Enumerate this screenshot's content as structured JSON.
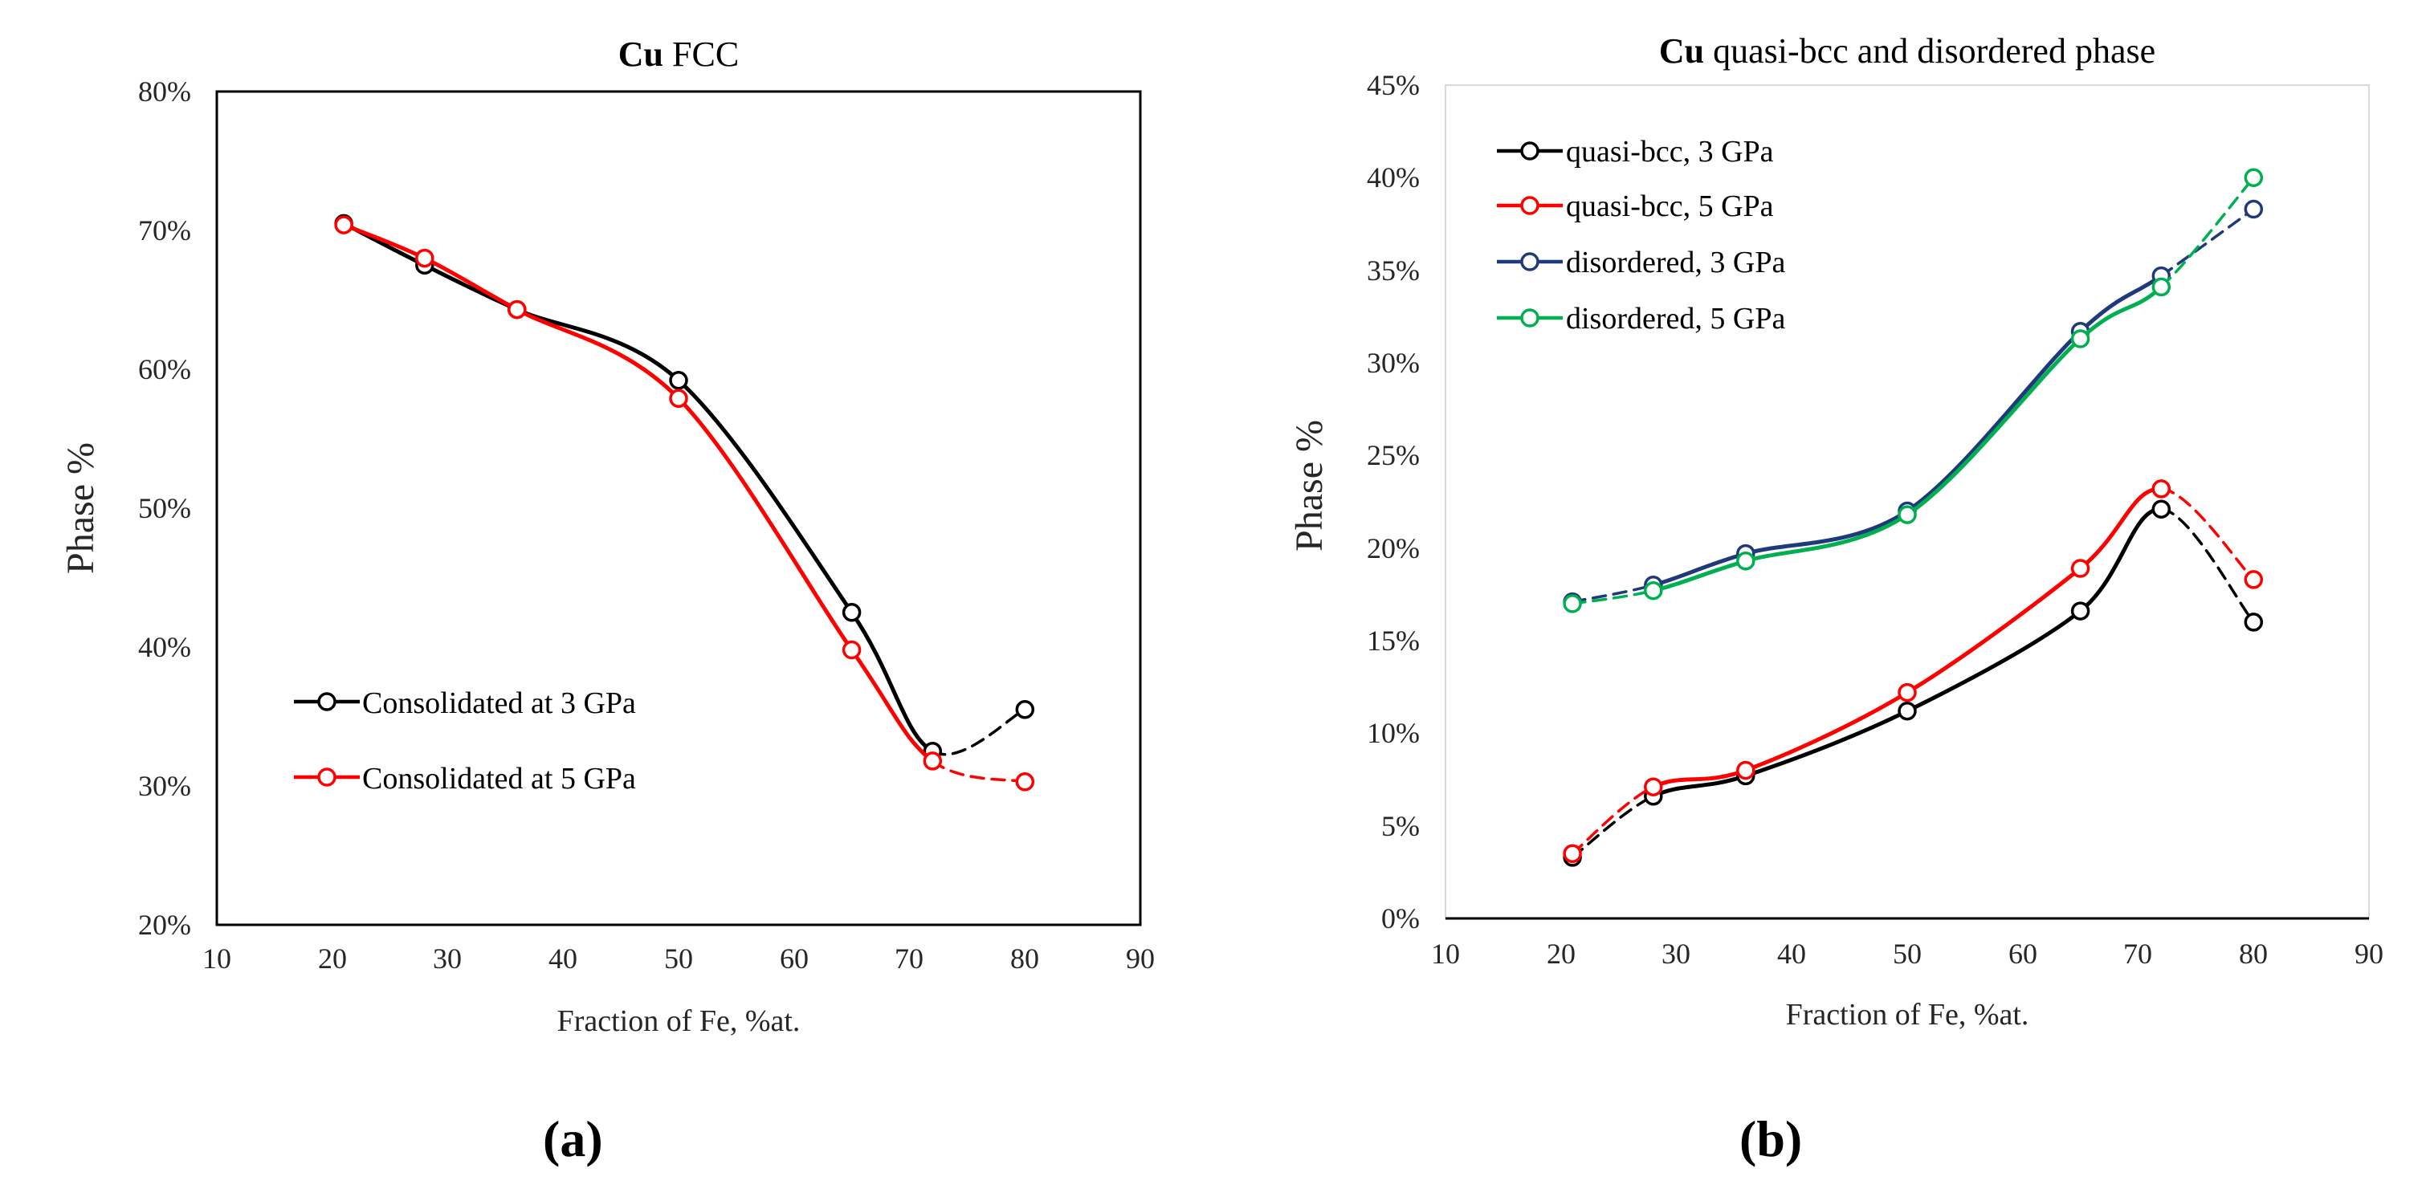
{
  "chart_data": [
    {
      "type": "line",
      "panel_label": "(a)",
      "title_bold": "Cu",
      "title_rest": " FCC",
      "xlabel": "Fraction of Fe, %at.",
      "ylabel": "Phase %",
      "xlim": [
        10,
        90
      ],
      "ylim": [
        20,
        80
      ],
      "x_ticks": [
        "10",
        "20",
        "30",
        "40",
        "50",
        "60",
        "70",
        "80",
        "90"
      ],
      "y_ticks": [
        "20%",
        "30%",
        "40%",
        "50%",
        "60%",
        "70%",
        "80%"
      ],
      "legend_position": "lower-left",
      "series": [
        {
          "name": "Consolidated at 3 GPa",
          "color": "#000000",
          "x": [
            21,
            28,
            36,
            50,
            65,
            72,
            80
          ],
          "values": [
            70.5,
            67.5,
            64.3,
            59.2,
            42.5,
            32.5,
            35.5
          ],
          "dashed_last_segment": true
        },
        {
          "name": "Consolidated at 5 GPa",
          "color": "#ff0000",
          "x": [
            21,
            28,
            36,
            50,
            65,
            72,
            80
          ],
          "values": [
            70.4,
            68.0,
            64.3,
            57.9,
            39.8,
            31.8,
            30.3
          ],
          "dashed_last_segment": true
        }
      ]
    },
    {
      "type": "line",
      "panel_label": "(b)",
      "title_bold": "Cu",
      "title_rest": " quasi-bcc and disordered phase",
      "xlabel": "Fraction of Fe, %at.",
      "ylabel": "Phase %",
      "xlim": [
        10,
        90
      ],
      "ylim": [
        0,
        45
      ],
      "x_ticks": [
        "10",
        "20",
        "30",
        "40",
        "50",
        "60",
        "70",
        "80",
        "90"
      ],
      "y_ticks": [
        "0%",
        "5%",
        "10%",
        "15%",
        "20%",
        "25%",
        "30%",
        "35%",
        "40%",
        "45%"
      ],
      "legend_position": "top-left",
      "series": [
        {
          "name": "quasi-bcc, 3 GPa",
          "color": "#000000",
          "x": [
            21,
            28,
            36,
            50,
            65,
            72,
            80
          ],
          "values": [
            3.3,
            6.6,
            7.7,
            11.2,
            16.6,
            22.1,
            16.0
          ],
          "dashed_first_segment": true,
          "dashed_last_segment": true
        },
        {
          "name": "quasi-bcc, 5 GPa",
          "color": "#ff0000",
          "x": [
            21,
            28,
            36,
            50,
            65,
            72,
            80
          ],
          "values": [
            3.5,
            7.1,
            8.0,
            12.2,
            18.9,
            23.2,
            18.3
          ],
          "dashed_first_segment": true,
          "dashed_last_segment": true
        },
        {
          "name": "disordered, 3 GPa",
          "color": "#1f3a7a",
          "x": [
            21,
            28,
            36,
            50,
            65,
            72,
            80
          ],
          "values": [
            17.1,
            18.0,
            19.7,
            22.0,
            31.7,
            34.7,
            38.3
          ],
          "dashed_first_segment": true,
          "dashed_last_segment": true
        },
        {
          "name": "disordered, 5 GPa",
          "color": "#00b050",
          "x": [
            21,
            28,
            36,
            50,
            65,
            72,
            80
          ],
          "values": [
            17.0,
            17.7,
            19.3,
            21.8,
            31.3,
            34.1,
            40.0
          ],
          "dashed_first_segment": true,
          "dashed_last_segment": true
        }
      ]
    }
  ]
}
